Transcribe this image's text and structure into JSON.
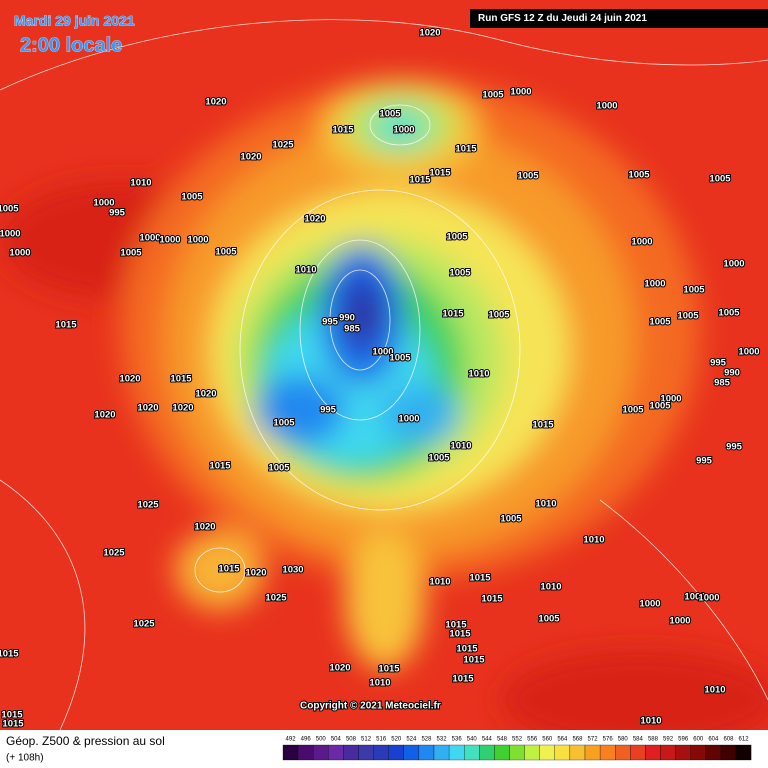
{
  "header": {
    "date": "Mardi 29 juin 2021",
    "time": "2:00 locale",
    "run": "Run GFS 12 Z du Jeudi 24 juin 2021"
  },
  "copyright": "Copyright © 2021 Meteociel.fr",
  "legend": {
    "title": "Géop. Z500 & pression au sol",
    "lead": "(+ 108h)"
  },
  "colorbar": {
    "ticks": [
      492,
      496,
      500,
      504,
      508,
      512,
      516,
      520,
      524,
      528,
      532,
      536,
      540,
      544,
      548,
      552,
      556,
      560,
      564,
      568,
      572,
      576,
      580,
      584,
      588,
      592,
      596,
      600,
      604,
      608,
      612
    ],
    "colors": [
      "#2a0040",
      "#4b0a6e",
      "#5b1a8c",
      "#6a2aa8",
      "#4a2aa0",
      "#3a3aa8",
      "#2a3ab8",
      "#1a40d0",
      "#1060e8",
      "#2088f0",
      "#30b0f0",
      "#40d8f0",
      "#40e0c0",
      "#30d070",
      "#40d030",
      "#80e030",
      "#c0f040",
      "#f0f050",
      "#f8e040",
      "#f8c030",
      "#f8a020",
      "#f88020",
      "#f06020",
      "#e84020",
      "#e02020",
      "#c81818",
      "#a81010",
      "#880808",
      "#600404",
      "#400000",
      "#100000"
    ]
  },
  "isobars": [
    "1020",
    "1005",
    "1000",
    "1020",
    "1005",
    "1000",
    "1015",
    "1025",
    "1020",
    "1015",
    "1000",
    "1015",
    "1015",
    "1005",
    "1005",
    "1005",
    "1010",
    "1005",
    "1000",
    "995",
    "1005",
    "1000",
    "1000",
    "1000",
    "1000",
    "1005",
    "1005",
    "1000",
    "1020",
    "1005",
    "1000",
    "1000",
    "1010",
    "1005",
    "1000",
    "1005",
    "1005",
    "1015",
    "1005",
    "995",
    "990",
    "985",
    "1005",
    "1005",
    "1015",
    "1000",
    "1005",
    "1000",
    "995",
    "990",
    "985",
    "1010",
    "1020",
    "1015",
    "1020",
    "1000",
    "1005",
    "1005",
    "1020",
    "1020",
    "1020",
    "995",
    "1000",
    "1005",
    "1015",
    "995",
    "995",
    "1010",
    "1005",
    "1005",
    "1015",
    "1025",
    "1005",
    "1010",
    "1020",
    "1010",
    "1025",
    "1015",
    "1020",
    "1030",
    "1025",
    "1010",
    "1015",
    "1015",
    "1010",
    "1000",
    "1000",
    "1000",
    "1025",
    "1015",
    "1015",
    "1005",
    "1000",
    "1015",
    "1015",
    "1015",
    "1020",
    "1015",
    "1015",
    "1010",
    "1010",
    "1015",
    "1015",
    "1010"
  ]
}
